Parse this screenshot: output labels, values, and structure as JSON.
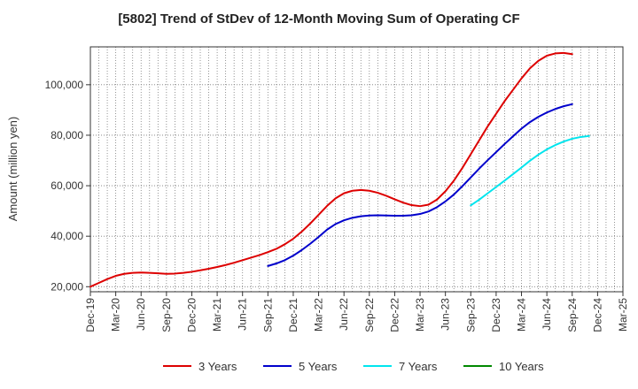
{
  "chart_data": {
    "type": "line",
    "title": "[5802]  Trend of StDev of 12-Month Moving Sum of Operating CF",
    "ylabel": "Amount (million yen)",
    "xlabel": "",
    "ylim": [
      18000,
      115000
    ],
    "yticks": [
      20000,
      40000,
      60000,
      80000,
      100000
    ],
    "ytick_labels": [
      "20,000",
      "40,000",
      "60,000",
      "80,000",
      "100,000"
    ],
    "xlim": [
      "2019-12",
      "2025-03"
    ],
    "xtick_labels": [
      "Dec-19",
      "Mar-20",
      "Jun-20",
      "Sep-20",
      "Dec-20",
      "Mar-21",
      "Jun-21",
      "Sep-21",
      "Dec-21",
      "Mar-22",
      "Jun-22",
      "Sep-22",
      "Dec-22",
      "Mar-23",
      "Jun-23",
      "Sep-23",
      "Dec-23",
      "Mar-24",
      "Jun-24",
      "Sep-24",
      "Dec-24",
      "Mar-25"
    ],
    "grid": true,
    "legend_position": "bottom",
    "series": [
      {
        "name": "3 Years",
        "color": "#dd0000",
        "points": [
          [
            "2019-12",
            20000
          ],
          [
            "2020-01",
            21500
          ],
          [
            "2020-02",
            23000
          ],
          [
            "2020-03",
            24300
          ],
          [
            "2020-04",
            25100
          ],
          [
            "2020-05",
            25500
          ],
          [
            "2020-06",
            25600
          ],
          [
            "2020-07",
            25500
          ],
          [
            "2020-08",
            25300
          ],
          [
            "2020-09",
            25100
          ],
          [
            "2020-10",
            25200
          ],
          [
            "2020-11",
            25500
          ],
          [
            "2020-12",
            25900
          ],
          [
            "2021-01",
            26500
          ],
          [
            "2021-02",
            27100
          ],
          [
            "2021-03",
            27800
          ],
          [
            "2021-04",
            28600
          ],
          [
            "2021-05",
            29500
          ],
          [
            "2021-06",
            30500
          ],
          [
            "2021-07",
            31500
          ],
          [
            "2021-08",
            32500
          ],
          [
            "2021-09",
            33700
          ],
          [
            "2021-10",
            35000
          ],
          [
            "2021-11",
            36800
          ],
          [
            "2021-12",
            39000
          ],
          [
            "2022-01",
            41800
          ],
          [
            "2022-02",
            45000
          ],
          [
            "2022-03",
            48500
          ],
          [
            "2022-04",
            52000
          ],
          [
            "2022-05",
            55000
          ],
          [
            "2022-06",
            57000
          ],
          [
            "2022-07",
            58000
          ],
          [
            "2022-08",
            58300
          ],
          [
            "2022-09",
            58000
          ],
          [
            "2022-10",
            57200
          ],
          [
            "2022-11",
            56000
          ],
          [
            "2022-12",
            54600
          ],
          [
            "2023-01",
            53300
          ],
          [
            "2023-02",
            52300
          ],
          [
            "2023-03",
            51900
          ],
          [
            "2023-04",
            52500
          ],
          [
            "2023-05",
            54500
          ],
          [
            "2023-06",
            57800
          ],
          [
            "2023-07",
            62000
          ],
          [
            "2023-08",
            67000
          ],
          [
            "2023-09",
            72500
          ],
          [
            "2023-10",
            78000
          ],
          [
            "2023-11",
            83500
          ],
          [
            "2023-12",
            88500
          ],
          [
            "2024-01",
            93500
          ],
          [
            "2024-02",
            98000
          ],
          [
            "2024-03",
            102500
          ],
          [
            "2024-04",
            106500
          ],
          [
            "2024-05",
            109500
          ],
          [
            "2024-06",
            111500
          ],
          [
            "2024-07",
            112400
          ],
          [
            "2024-08",
            112600
          ],
          [
            "2024-09",
            112100
          ]
        ]
      },
      {
        "name": "5 Years",
        "color": "#0000cc",
        "points": [
          [
            "2021-09",
            28200
          ],
          [
            "2021-10",
            29200
          ],
          [
            "2021-11",
            30500
          ],
          [
            "2021-12",
            32300
          ],
          [
            "2022-01",
            34500
          ],
          [
            "2022-02",
            37000
          ],
          [
            "2022-03",
            39700
          ],
          [
            "2022-04",
            42600
          ],
          [
            "2022-05",
            44800
          ],
          [
            "2022-06",
            46300
          ],
          [
            "2022-07",
            47300
          ],
          [
            "2022-08",
            47900
          ],
          [
            "2022-09",
            48200
          ],
          [
            "2022-10",
            48300
          ],
          [
            "2022-11",
            48200
          ],
          [
            "2022-12",
            48100
          ],
          [
            "2023-01",
            48100
          ],
          [
            "2023-02",
            48300
          ],
          [
            "2023-03",
            48800
          ],
          [
            "2023-04",
            49800
          ],
          [
            "2023-05",
            51500
          ],
          [
            "2023-06",
            53800
          ],
          [
            "2023-07",
            56500
          ],
          [
            "2023-08",
            59800
          ],
          [
            "2023-09",
            63300
          ],
          [
            "2023-10",
            66800
          ],
          [
            "2023-11",
            70100
          ],
          [
            "2023-12",
            73300
          ],
          [
            "2024-01",
            76500
          ],
          [
            "2024-02",
            79600
          ],
          [
            "2024-03",
            82600
          ],
          [
            "2024-04",
            85200
          ],
          [
            "2024-05",
            87300
          ],
          [
            "2024-06",
            89000
          ],
          [
            "2024-07",
            90400
          ],
          [
            "2024-08",
            91500
          ],
          [
            "2024-09",
            92300
          ]
        ]
      },
      {
        "name": "7 Years",
        "color": "#00e5ee",
        "points": [
          [
            "2023-09",
            52200
          ],
          [
            "2023-10",
            54500
          ],
          [
            "2023-11",
            57000
          ],
          [
            "2023-12",
            59500
          ],
          [
            "2024-01",
            62000
          ],
          [
            "2024-02",
            64600
          ],
          [
            "2024-03",
            67200
          ],
          [
            "2024-04",
            69900
          ],
          [
            "2024-05",
            72300
          ],
          [
            "2024-06",
            74400
          ],
          [
            "2024-07",
            76100
          ],
          [
            "2024-08",
            77500
          ],
          [
            "2024-09",
            78600
          ],
          [
            "2024-10",
            79300
          ],
          [
            "2024-11",
            79700
          ]
        ]
      },
      {
        "name": "10 Years",
        "color": "#008800",
        "points": []
      }
    ]
  }
}
